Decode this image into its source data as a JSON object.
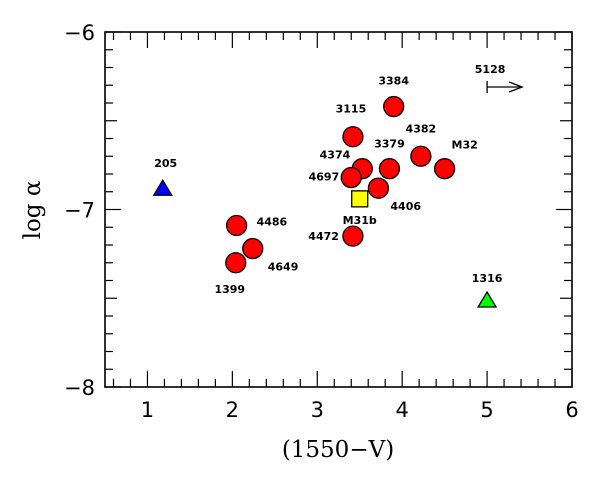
{
  "chart_data": {
    "type": "scatter",
    "title": "",
    "xlabel": "(1550−V)",
    "ylabel": "log α",
    "xlim": [
      0.5,
      6
    ],
    "ylim": [
      -8,
      -6
    ],
    "xticks": [
      1,
      2,
      3,
      4,
      5,
      6
    ],
    "yticks": [
      -8,
      -7,
      -6
    ],
    "xtick_labels": [
      "1",
      "2",
      "3",
      "4",
      "5",
      "6"
    ],
    "ytick_labels": [
      "−8",
      "−7",
      "−6"
    ],
    "x_minor_step": 0.2,
    "y_minor_step": 0.1,
    "grid": false,
    "points": [
      {
        "label": "3384",
        "x": 3.9,
        "y": -6.42,
        "marker": "circle",
        "color": "#ff0000"
      },
      {
        "label": "3115",
        "x": 3.42,
        "y": -6.59,
        "marker": "circle",
        "color": "#ff0000"
      },
      {
        "label": "4382",
        "x": 4.22,
        "y": -6.7,
        "marker": "circle",
        "color": "#ff0000"
      },
      {
        "label": "M32",
        "x": 4.5,
        "y": -6.77,
        "marker": "circle",
        "color": "#ff0000"
      },
      {
        "label": "3379",
        "x": 3.85,
        "y": -6.77,
        "marker": "circle",
        "color": "#ff0000"
      },
      {
        "label": "4374",
        "x": 3.53,
        "y": -6.77,
        "marker": "circle",
        "color": "#ff0000"
      },
      {
        "label": "4697",
        "x": 3.4,
        "y": -6.82,
        "marker": "circle",
        "color": "#ff0000"
      },
      {
        "label": "4406",
        "x": 3.72,
        "y": -6.88,
        "marker": "circle",
        "color": "#ff0000"
      },
      {
        "label": "M31b",
        "x": 3.5,
        "y": -6.94,
        "marker": "square",
        "color": "#ffff00"
      },
      {
        "label": "4472",
        "x": 3.42,
        "y": -7.15,
        "marker": "circle",
        "color": "#ff0000"
      },
      {
        "label": "4486",
        "x": 2.05,
        "y": -7.09,
        "marker": "circle",
        "color": "#ff0000"
      },
      {
        "label": "4649",
        "x": 2.24,
        "y": -7.22,
        "marker": "circle",
        "color": "#ff0000"
      },
      {
        "label": "1399",
        "x": 2.04,
        "y": -7.3,
        "marker": "circle",
        "color": "#ff0000"
      },
      {
        "label": "205",
        "x": 1.18,
        "y": -6.88,
        "marker": "triangle",
        "color": "#0000ff"
      },
      {
        "label": "1316",
        "x": 5.0,
        "y": -7.51,
        "marker": "triangle",
        "color": "#00ff00"
      },
      {
        "label": "5128",
        "x": 5.0,
        "y": -6.31,
        "marker": "lower-limit-arrow",
        "color": "#000000"
      }
    ]
  }
}
